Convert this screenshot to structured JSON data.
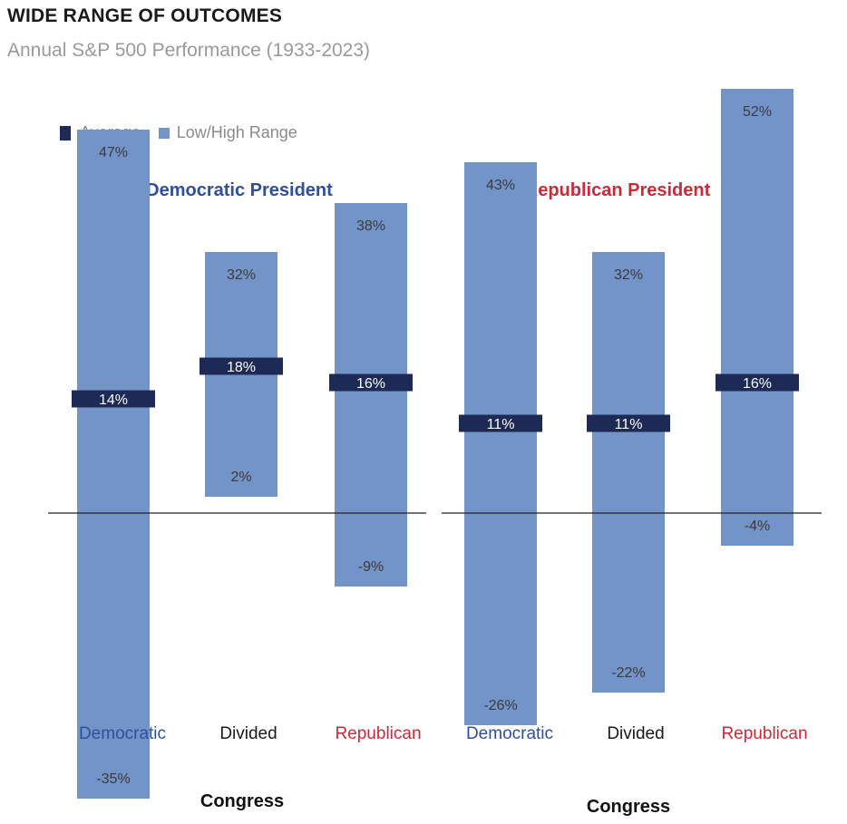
{
  "header": {
    "title": "WIDE RANGE OF OUTCOMES",
    "subtitle": "Annual S&P 500 Performance (1933-2023)"
  },
  "legend": {
    "average_label": "Average",
    "range_label": "Low/High Range"
  },
  "colors": {
    "range": "#7394c8",
    "average": "#1c2a55",
    "democratic": "#2e4f9c",
    "republican": "#cc2a36",
    "divided": "#1a1a1a"
  },
  "chart_data": {
    "type": "bar",
    "groups": [
      {
        "name": "Democratic President",
        "xlabel": "Congress",
        "categories": [
          "Democratic",
          "Divided",
          "Republican"
        ],
        "low": [
          -35,
          2,
          -9
        ],
        "high": [
          47,
          32,
          38
        ],
        "average": [
          14,
          18,
          16
        ],
        "low_labels": [
          "-35%",
          "2%",
          "-9%"
        ],
        "high_labels": [
          "47%",
          "32%",
          "38%"
        ],
        "average_labels": [
          "14%",
          "18%",
          "16%"
        ]
      },
      {
        "name": "Republican President",
        "xlabel": "Congress",
        "categories": [
          "Democratic",
          "Divided",
          "Republican"
        ],
        "low": [
          -26,
          -22,
          -4
        ],
        "high": [
          43,
          32,
          52
        ],
        "average": [
          11,
          11,
          16
        ],
        "low_labels": [
          "-26%",
          "-22%",
          "-4%"
        ],
        "high_labels": [
          "43%",
          "32%",
          "52%"
        ],
        "average_labels": [
          "11%",
          "11%",
          "16%"
        ]
      }
    ],
    "ylim": [
      -35,
      52
    ],
    "grid": false,
    "legend_position": "top-left"
  }
}
